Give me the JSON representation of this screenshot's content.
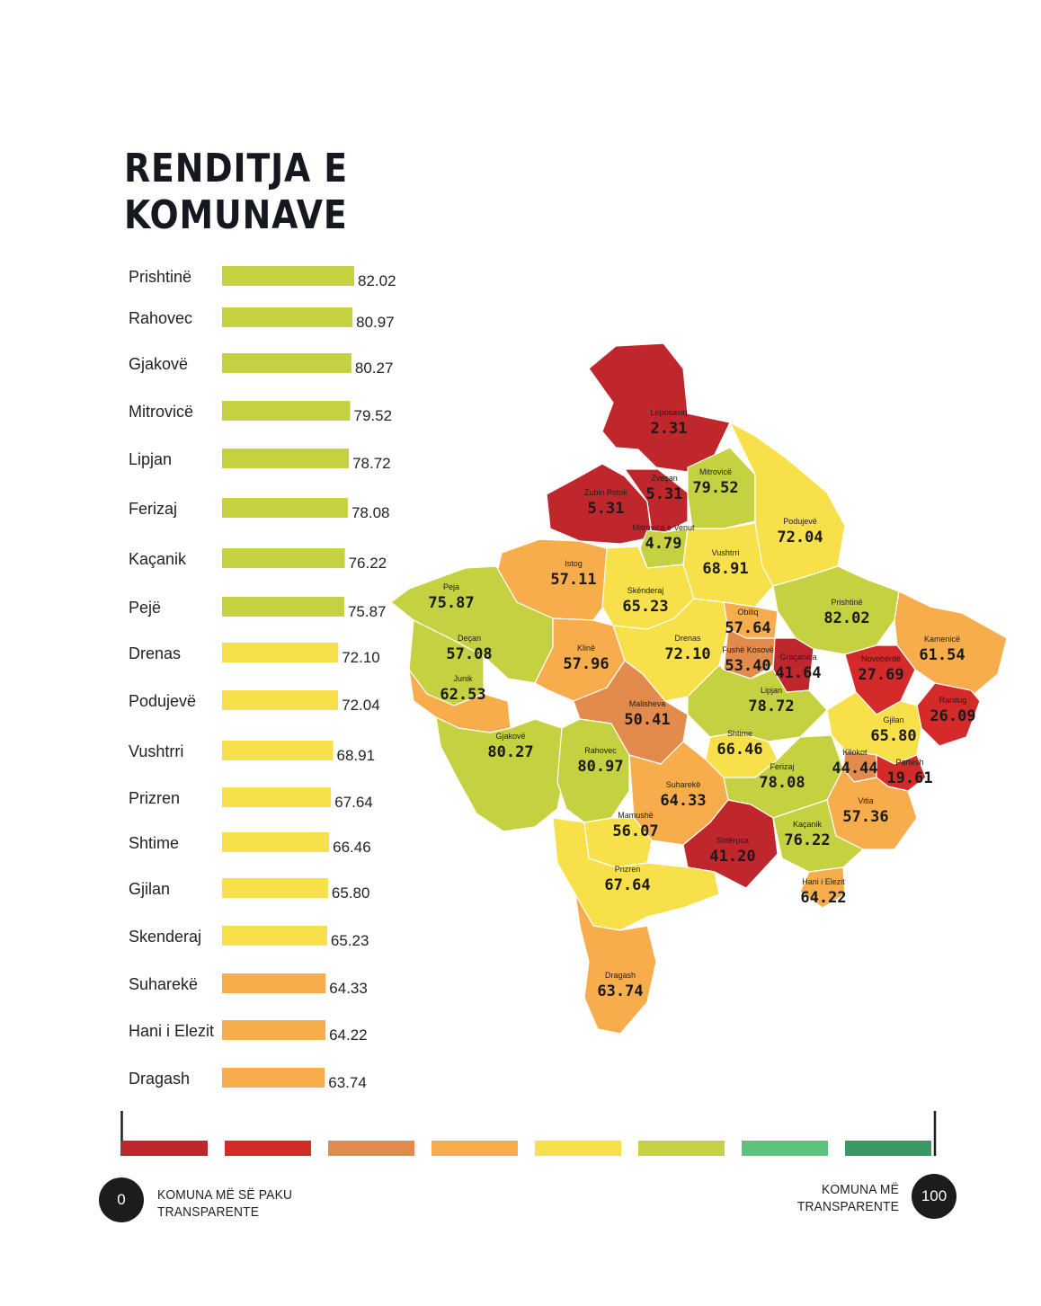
{
  "title": {
    "line1": "RENDITJA E",
    "line2": "KOMUNAVE"
  },
  "colors": {
    "dark_red": "#c0272d",
    "red": "#d42a2a",
    "dark_orange": "#e38b4c",
    "orange": "#f8ad4d",
    "yellow": "#f8e04b",
    "yellow_green": "#c5d140",
    "light_green": "#5fc27a",
    "green": "#3a9963"
  },
  "legend": {
    "min_value": "0",
    "max_value": "100",
    "min_label_line1": "KOMUNA MË SË PAKU",
    "min_label_line2": "TRANSPARENTE",
    "max_label_line1": "KOMUNA MË",
    "max_label_line2": "TRANSPARENTE",
    "scale_colors": [
      "#c0272d",
      "#d42a2a",
      "#e38b4c",
      "#f8ad4d",
      "#f8e04b",
      "#c5d140",
      "#5fc27a",
      "#3a9963"
    ]
  },
  "chart_data": [
    {
      "type": "bar",
      "orientation": "horizontal",
      "categories": [
        "Prishtinë",
        "Rahovec",
        "Gjakovë",
        "Mitrovicë",
        "Lipjan",
        "Ferizaj",
        "Kaçanik",
        "Pejë",
        "Drenas",
        "Podujevë",
        "Vushtrri",
        "Prizren",
        "Shtime",
        "Gjilan",
        "Skenderaj",
        "Suharekë",
        "Hani i Elezit",
        "Dragash"
      ],
      "values": [
        82.02,
        80.97,
        80.27,
        79.52,
        78.72,
        78.08,
        76.22,
        75.87,
        72.1,
        72.04,
        68.91,
        67.64,
        66.46,
        65.8,
        65.23,
        64.33,
        64.22,
        63.74
      ],
      "value_labels": [
        "82.02",
        "80.97",
        "80.27",
        "79.52",
        "78.72",
        "78.08",
        "76.22",
        "75.87",
        "72.10",
        "72.04",
        "68.91",
        "67.64",
        "66.46",
        "65.80",
        "65.23",
        "64.33",
        "64.22",
        "63.74"
      ],
      "bar_colors": [
        "#c5d140",
        "#c5d140",
        "#c5d140",
        "#c5d140",
        "#c5d140",
        "#c5d140",
        "#c5d140",
        "#c5d140",
        "#f8e04b",
        "#f8e04b",
        "#f8e04b",
        "#f8e04b",
        "#f8e04b",
        "#f8e04b",
        "#f8e04b",
        "#f8ad4d",
        "#f8ad4d",
        "#f8ad4d"
      ],
      "xlim": [
        0,
        100
      ]
    },
    {
      "type": "choropleth_map",
      "regions": [
        {
          "name": "Leposaviq",
          "value": "2.31",
          "color": "#c0272d"
        },
        {
          "name": "Zubin Potok",
          "value": "5.31",
          "color": "#c0272d"
        },
        {
          "name": "Zveçan",
          "value": "5.31",
          "color": "#c0272d"
        },
        {
          "name": "Mitrovicë",
          "value": "79.52",
          "color": "#c5d140"
        },
        {
          "name": "Mitrovica e Venut",
          "value": "4.79",
          "color": "#c5d140"
        },
        {
          "name": "Podujevë",
          "value": "72.04",
          "color": "#f8e04b"
        },
        {
          "name": "Vushtrri",
          "value": "68.91",
          "color": "#f8e04b"
        },
        {
          "name": "Istog",
          "value": "57.11",
          "color": "#f8ad4d"
        },
        {
          "name": "Skënderaj",
          "value": "65.23",
          "color": "#f8e04b"
        },
        {
          "name": "Peja",
          "value": "75.87",
          "color": "#c5d140"
        },
        {
          "name": "Obiliq",
          "value": "57.64",
          "color": "#f8ad4d"
        },
        {
          "name": "Prishtinë",
          "value": "82.02",
          "color": "#c5d140"
        },
        {
          "name": "Kamenicë",
          "value": "61.54",
          "color": "#f8ad4d"
        },
        {
          "name": "Deçan",
          "value": "57.08",
          "color": "#c5d140"
        },
        {
          "name": "Klinë",
          "value": "57.96",
          "color": "#f8ad4d"
        },
        {
          "name": "Drenas",
          "value": "72.10",
          "color": "#f8e04b"
        },
        {
          "name": "Fushë Kosovë",
          "value": "53.40",
          "color": "#e38b4c"
        },
        {
          "name": "Graçanica",
          "value": "41.64",
          "color": "#c0272d"
        },
        {
          "name": "Novobërdë",
          "value": "27.69",
          "color": "#d42a2a"
        },
        {
          "name": "Junik",
          "value": "62.53",
          "color": "#f8ad4d"
        },
        {
          "name": "Malisheva",
          "value": "50.41",
          "color": "#e38b4c"
        },
        {
          "name": "Lipjan",
          "value": "78.72",
          "color": "#c5d140"
        },
        {
          "name": "Ranilug",
          "value": "26.09",
          "color": "#d42a2a"
        },
        {
          "name": "Gjakovë",
          "value": "80.27",
          "color": "#c5d140"
        },
        {
          "name": "Rahovec",
          "value": "80.97",
          "color": "#c5d140"
        },
        {
          "name": "Shtime",
          "value": "66.46",
          "color": "#f8e04b"
        },
        {
          "name": "Gjilan",
          "value": "65.80",
          "color": "#f8e04b"
        },
        {
          "name": "Kllokot",
          "value": "44.44",
          "color": "#e38b4c"
        },
        {
          "name": "Partesh",
          "value": "19.61",
          "color": "#d42a2a"
        },
        {
          "name": "Ferizaj",
          "value": "78.08",
          "color": "#c5d140"
        },
        {
          "name": "Suharekë",
          "value": "64.33",
          "color": "#f8ad4d"
        },
        {
          "name": "Vitia",
          "value": "57.36",
          "color": "#f8ad4d"
        },
        {
          "name": "Mamushë",
          "value": "56.07",
          "color": "#f8e04b"
        },
        {
          "name": "Shtërpca",
          "value": "41.20",
          "color": "#c0272d"
        },
        {
          "name": "Kaçanik",
          "value": "76.22",
          "color": "#c5d140"
        },
        {
          "name": "Hani i Elezit",
          "value": "64.22",
          "color": "#f8ad4d"
        },
        {
          "name": "Prizren",
          "value": "67.64",
          "color": "#f8e04b"
        },
        {
          "name": "Dragash",
          "value": "63.74",
          "color": "#f8ad4d"
        }
      ]
    }
  ]
}
